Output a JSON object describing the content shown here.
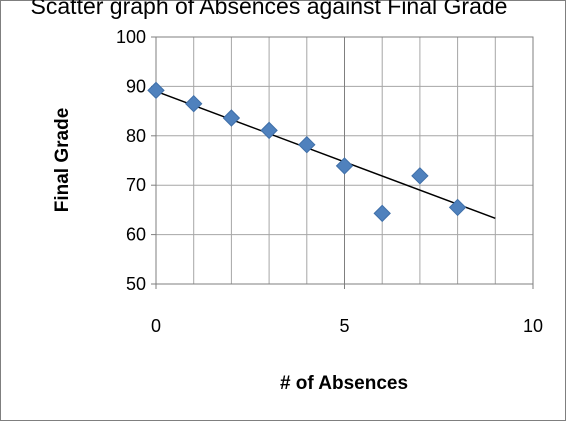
{
  "chart_data": {
    "type": "scatter",
    "title": "Scatter graph of Absences against Final Grade",
    "xlabel": "# of Absences",
    "ylabel": "Final Grade",
    "xlim": [
      0,
      10
    ],
    "ylim": [
      50,
      100
    ],
    "x_ticks": [
      0,
      5,
      10
    ],
    "y_ticks": [
      50,
      60,
      70,
      80,
      90,
      100
    ],
    "x_tick_labels": [
      "0",
      "5",
      "10"
    ],
    "y_tick_labels": [
      "50",
      "60",
      "70",
      "80",
      "90",
      "100"
    ],
    "grid": true,
    "legend": "none",
    "series": [
      {
        "x": [
          0,
          1,
          2,
          3,
          4,
          5,
          6,
          7,
          8
        ],
        "y": [
          89.2,
          86.5,
          83.6,
          81.1,
          78.2,
          73.9,
          64.3,
          71.9,
          65.5
        ],
        "marker": "diamond",
        "color": "#4f81bd"
      }
    ],
    "trendline": {
      "type": "linear",
      "x": [
        0,
        9
      ],
      "y": [
        89,
        63.3
      ],
      "color": "#000000"
    }
  }
}
